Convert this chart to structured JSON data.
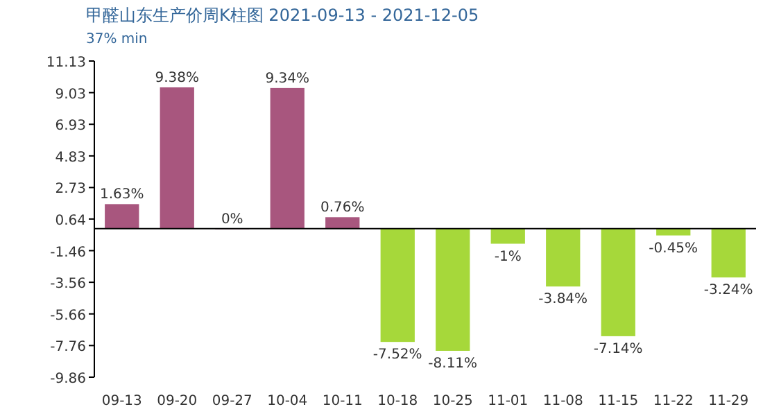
{
  "chart_data": {
    "type": "bar",
    "title": "甲醛山东生产价周K柱图  2021-09-13 - 2021-12-05",
    "subtitle": "37% min",
    "categories": [
      "09-13",
      "09-20",
      "09-27",
      "10-04",
      "10-11",
      "10-18",
      "10-25",
      "11-01",
      "11-08",
      "11-15",
      "11-22",
      "11-29"
    ],
    "values": [
      1.63,
      9.38,
      0,
      9.34,
      0.76,
      -7.52,
      -8.11,
      -1,
      -3.84,
      -7.14,
      -0.45,
      -3.24
    ],
    "value_labels": [
      "1.63%",
      "9.38%",
      "0%",
      "9.34%",
      "0.76%",
      "-7.52%",
      "-8.11%",
      "-1%",
      "-3.84%",
      "-7.14%",
      "-0.45%",
      "-3.24%"
    ],
    "colors": [
      "#a8567e",
      "#a8567e",
      "#a8567e",
      "#a8567e",
      "#a8567e",
      "#a6d83a",
      "#a6d83a",
      "#a6d83a",
      "#a6d83a",
      "#a6d83a",
      "#a6d83a",
      "#a6d83a"
    ],
    "ylim": [
      -9.86,
      11.13
    ],
    "yticks": [
      11.13,
      9.03,
      6.93,
      4.83,
      2.73,
      0.64,
      -1.46,
      -3.56,
      -5.66,
      -7.76,
      -9.86
    ],
    "grid": false
  }
}
